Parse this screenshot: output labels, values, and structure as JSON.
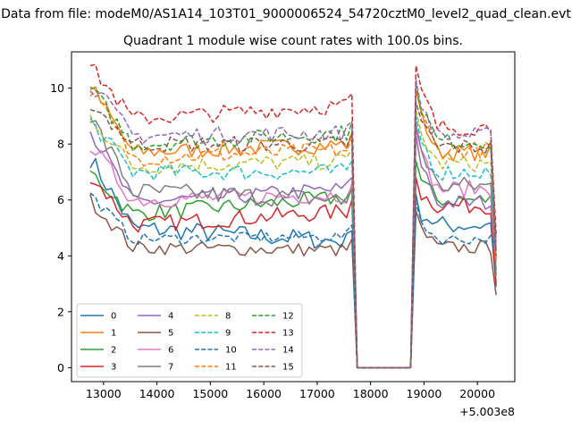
{
  "figure": {
    "suptitle": "Data from file: modeM0/AS1A14_103T01_9000006524_54720cztM0_level2_quad_clean.evt",
    "title": "Quadrant 1 module wise count rates with 100.0s bins.",
    "x_offset_label": "+5.003e8"
  },
  "chart_data": {
    "type": "line",
    "title": "Quadrant 1 module wise count rates with 100.0s bins.",
    "xlabel": "",
    "ylabel": "",
    "x_offset": 500300000,
    "xlim": [
      12400,
      20700
    ],
    "ylim": [
      -0.5,
      11.3
    ],
    "xticks": [
      13000,
      14000,
      15000,
      16000,
      17000,
      18000,
      19000,
      20000
    ],
    "xtick_labels": [
      "13000",
      "14000",
      "15000",
      "16000",
      "17000",
      "18000",
      "19000",
      "20000"
    ],
    "yticks": [
      0,
      2,
      4,
      6,
      8,
      10
    ],
    "ytick_labels": [
      "0",
      "2",
      "4",
      "6",
      "8",
      "10"
    ],
    "grid": false,
    "legend_position": "lower-left",
    "legend_columns": 4,
    "time_range": {
      "start": 12750,
      "end": 20350,
      "step": 100
    },
    "gap": {
      "start": 17750,
      "end": 18750
    },
    "series": [
      {
        "name": "0",
        "color": "#1f77b4",
        "dash": "solid",
        "start": 7.5,
        "plateau1": 5.0,
        "end1": 4.5,
        "peak": 5.7,
        "plateau2": 5.1,
        "last": 2.9,
        "noise": 0.35
      },
      {
        "name": "1",
        "color": "#ff7f0e",
        "dash": "solid",
        "start": 10.1,
        "plateau1": 7.7,
        "end1": 8.0,
        "peak": 9.4,
        "plateau2": 7.7,
        "last": 3.8,
        "noise": 0.3
      },
      {
        "name": "2",
        "color": "#2ca02c",
        "dash": "solid",
        "start": 7.0,
        "plateau1": 5.5,
        "end1": 6.1,
        "peak": 6.9,
        "plateau2": 6.0,
        "last": 3.5,
        "noise": 0.3
      },
      {
        "name": "3",
        "color": "#d62728",
        "dash": "solid",
        "start": 6.9,
        "plateau1": 5.1,
        "end1": 5.6,
        "peak": 6.3,
        "plateau2": 5.8,
        "last": 3.0,
        "noise": 0.3
      },
      {
        "name": "4",
        "color": "#9467bd",
        "dash": "solid",
        "start": 8.5,
        "plateau1": 5.9,
        "end1": 6.4,
        "peak": 7.8,
        "plateau2": 5.9,
        "last": 3.5,
        "noise": 0.3
      },
      {
        "name": "5",
        "color": "#8c564b",
        "dash": "solid",
        "start": 6.0,
        "plateau1": 4.3,
        "end1": 4.2,
        "peak": 5.1,
        "plateau2": 4.3,
        "last": 2.6,
        "noise": 0.25
      },
      {
        "name": "6",
        "color": "#e377c2",
        "dash": "solid",
        "start": 8.0,
        "plateau1": 6.0,
        "end1": 6.2,
        "peak": 8.0,
        "plateau2": 6.4,
        "last": 3.5,
        "noise": 0.3
      },
      {
        "name": "7",
        "color": "#7f7f7f",
        "dash": "solid",
        "start": 9.0,
        "plateau1": 6.3,
        "end1": 6.0,
        "peak": 8.2,
        "plateau2": 6.5,
        "last": 3.3,
        "noise": 0.35
      },
      {
        "name": "8",
        "color": "#bcbd22",
        "dash": "dashed",
        "start": 9.0,
        "plateau1": 7.2,
        "end1": 7.4,
        "peak": 8.7,
        "plateau2": 7.3,
        "last": 4.0,
        "noise": 0.3
      },
      {
        "name": "9",
        "color": "#17becf",
        "dash": "dashed",
        "start": 8.8,
        "plateau1": 7.0,
        "end1": 7.0,
        "peak": 8.5,
        "plateau2": 7.0,
        "last": 4.2,
        "noise": 0.3
      },
      {
        "name": "10",
        "color": "#1f77b4",
        "dash": "dashed",
        "start": 6.2,
        "plateau1": 4.6,
        "end1": 4.7,
        "peak": 5.4,
        "plateau2": 4.6,
        "last": 4.3,
        "noise": 0.2
      },
      {
        "name": "11",
        "color": "#ff7f0e",
        "dash": "dashed",
        "start": 10.0,
        "plateau1": 7.5,
        "end1": 7.8,
        "peak": 9.4,
        "plateau2": 7.8,
        "last": 3.8,
        "noise": 0.3
      },
      {
        "name": "12",
        "color": "#2ca02c",
        "dash": "dashed",
        "start": 10.0,
        "plateau1": 8.0,
        "end1": 8.4,
        "peak": 9.7,
        "plateau2": 8.1,
        "last": 4.5,
        "noise": 0.3
      },
      {
        "name": "13",
        "color": "#d62728",
        "dash": "dashed",
        "start": 10.8,
        "plateau1": 8.9,
        "end1": 9.4,
        "peak": 10.3,
        "plateau2": 8.6,
        "last": 4.8,
        "noise": 0.3
      },
      {
        "name": "14",
        "color": "#9467bd",
        "dash": "dashed",
        "start": 10.2,
        "plateau1": 8.3,
        "end1": 8.4,
        "peak": 9.8,
        "plateau2": 8.3,
        "last": 4.2,
        "noise": 0.3
      },
      {
        "name": "15",
        "color": "#8c564b",
        "dash": "dashed",
        "start": 9.5,
        "plateau1": 8.0,
        "end1": 8.0,
        "peak": 9.0,
        "plateau2": 7.9,
        "last": 4.0,
        "noise": 0.3
      }
    ]
  }
}
